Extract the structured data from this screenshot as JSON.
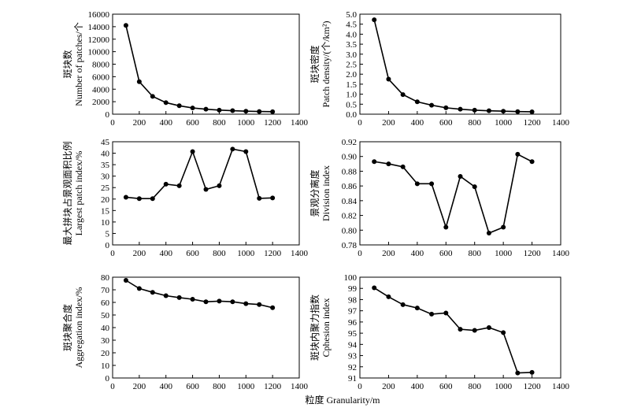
{
  "figure": {
    "shared_xlabel": "粒度 Granularity/m"
  },
  "chart_data": [
    {
      "type": "line",
      "ylabel_cn": "斑块数",
      "ylabel_en": "Number of patches/个",
      "x": [
        100,
        200,
        300,
        400,
        500,
        600,
        700,
        800,
        900,
        1000,
        1100,
        1200
      ],
      "values": [
        14200,
        5200,
        2850,
        1850,
        1350,
        1000,
        800,
        650,
        560,
        480,
        430,
        400
      ],
      "xlim": [
        0,
        1400
      ],
      "ylim": [
        0,
        16000
      ],
      "xticks": [
        0,
        200,
        400,
        600,
        800,
        1000,
        1200,
        1400
      ],
      "yticks": [
        0,
        2000,
        4000,
        6000,
        8000,
        10000,
        12000,
        14000,
        16000
      ],
      "ytick_decimals": 0
    },
    {
      "type": "line",
      "ylabel_cn": "斑块密度",
      "ylabel_en": "Patch density/(个/km²)",
      "x": [
        100,
        200,
        300,
        400,
        500,
        600,
        700,
        800,
        900,
        1000,
        1100,
        1200
      ],
      "values": [
        4.72,
        1.75,
        0.98,
        0.62,
        0.45,
        0.32,
        0.25,
        0.2,
        0.17,
        0.15,
        0.13,
        0.12
      ],
      "xlim": [
        0,
        1400
      ],
      "ylim": [
        0,
        5.0
      ],
      "xticks": [
        0,
        200,
        400,
        600,
        800,
        1000,
        1200,
        1400
      ],
      "yticks": [
        0,
        0.5,
        1.0,
        1.5,
        2.0,
        2.5,
        3.0,
        3.5,
        4.0,
        4.5,
        5.0
      ],
      "ytick_decimals": 1
    },
    {
      "type": "line",
      "ylabel_cn": "最大拼块占景观面积比例",
      "ylabel_en": "Largest patch index/%",
      "x": [
        100,
        200,
        300,
        400,
        500,
        600,
        700,
        800,
        900,
        1000,
        1100,
        1200
      ],
      "values": [
        20.8,
        20.2,
        20.2,
        26.5,
        25.8,
        40.7,
        24.2,
        25.8,
        41.8,
        40.7,
        20.3,
        20.5
      ],
      "xlim": [
        0,
        1400
      ],
      "ylim": [
        0,
        45
      ],
      "xticks": [
        0,
        200,
        400,
        600,
        800,
        1000,
        1200,
        1400
      ],
      "yticks": [
        0,
        5,
        10,
        15,
        20,
        25,
        30,
        35,
        40,
        45
      ],
      "ytick_decimals": 0
    },
    {
      "type": "line",
      "ylabel_cn": "景观分离度",
      "ylabel_en": "Division index",
      "x": [
        100,
        200,
        300,
        400,
        500,
        600,
        700,
        800,
        900,
        1000,
        1100,
        1200
      ],
      "values": [
        0.893,
        0.89,
        0.886,
        0.863,
        0.863,
        0.804,
        0.873,
        0.859,
        0.796,
        0.804,
        0.903,
        0.893
      ],
      "xlim": [
        0,
        1400
      ],
      "ylim": [
        0.78,
        0.92
      ],
      "xticks": [
        0,
        200,
        400,
        600,
        800,
        1000,
        1200,
        1400
      ],
      "yticks": [
        0.78,
        0.8,
        0.82,
        0.84,
        0.86,
        0.88,
        0.9,
        0.92
      ],
      "ytick_decimals": 2
    },
    {
      "type": "line",
      "ylabel_cn": "斑块聚合度",
      "ylabel_en": "Aggregation index/%",
      "x": [
        100,
        200,
        300,
        400,
        500,
        600,
        700,
        800,
        900,
        1000,
        1100,
        1200
      ],
      "values": [
        77.5,
        71.0,
        68.0,
        65.3,
        63.8,
        62.5,
        60.5,
        61.0,
        60.5,
        59.0,
        58.3,
        55.8
      ],
      "xlim": [
        0,
        1400
      ],
      "ylim": [
        0,
        80
      ],
      "xticks": [
        0,
        200,
        400,
        600,
        800,
        1000,
        1200,
        1400
      ],
      "yticks": [
        0,
        10,
        20,
        30,
        40,
        50,
        60,
        70,
        80
      ],
      "ytick_decimals": 0
    },
    {
      "type": "line",
      "ylabel_cn": "斑块内聚力指数",
      "ylabel_en": "Cphesion index",
      "x": [
        100,
        200,
        300,
        400,
        500,
        600,
        700,
        800,
        900,
        1000,
        1100,
        1200
      ],
      "values": [
        99.05,
        98.25,
        97.55,
        97.25,
        96.7,
        96.8,
        95.35,
        95.25,
        95.5,
        95.05,
        91.45,
        91.5
      ],
      "xlim": [
        0,
        1400
      ],
      "ylim": [
        91,
        100
      ],
      "xticks": [
        0,
        200,
        400,
        600,
        800,
        1000,
        1200,
        1400
      ],
      "yticks": [
        91,
        92,
        93,
        94,
        95,
        96,
        97,
        98,
        99,
        100
      ],
      "ytick_decimals": 0
    }
  ]
}
